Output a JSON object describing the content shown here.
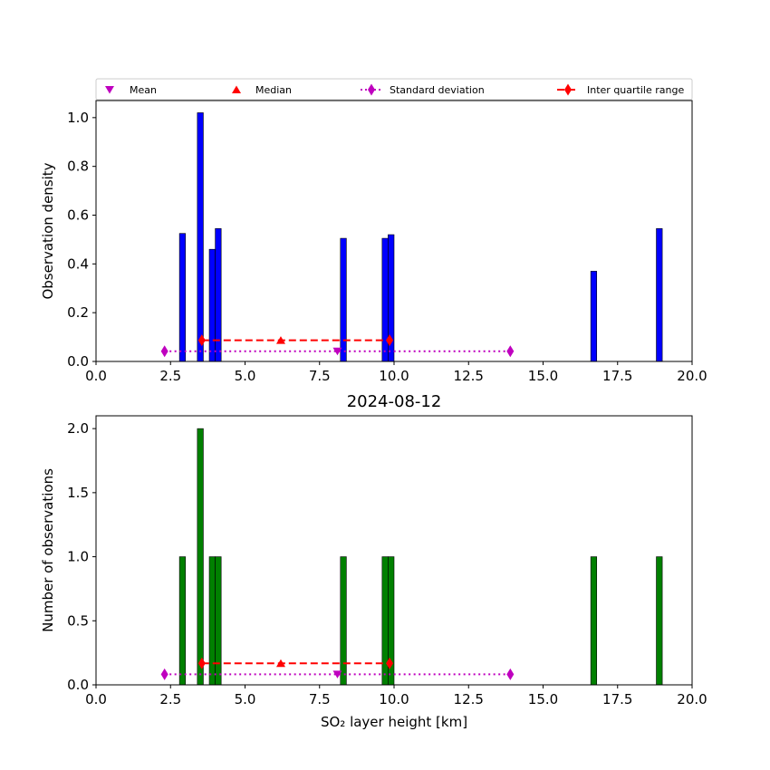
{
  "chart_data": [
    {
      "type": "bar",
      "title": "",
      "xlabel": "",
      "ylabel": "Observation density",
      "xlim": [
        0,
        20
      ],
      "ylim": [
        0,
        1.07
      ],
      "xticks": [
        0,
        2.5,
        5,
        7.5,
        10,
        12.5,
        15,
        17.5,
        20
      ],
      "xtick_labels": [
        "0.0",
        "2.5",
        "5.0",
        "7.5",
        "10.0",
        "12.5",
        "15.0",
        "17.5",
        "20.0"
      ],
      "yticks": [
        0,
        0.2,
        0.4,
        0.6,
        0.8,
        1.0
      ],
      "ytick_labels": [
        "0.0",
        "0.2",
        "0.4",
        "0.6",
        "0.8",
        "1.0"
      ],
      "bar_color": "#0000ff",
      "bin_width": 0.2,
      "bars": [
        {
          "x": 2.8,
          "value": 0.525
        },
        {
          "x": 3.4,
          "value": 1.02
        },
        {
          "x": 3.8,
          "value": 0.46
        },
        {
          "x": 4.0,
          "value": 0.545
        },
        {
          "x": 8.2,
          "value": 0.505
        },
        {
          "x": 9.6,
          "value": 0.505
        },
        {
          "x": 9.8,
          "value": 0.52
        },
        {
          "x": 16.6,
          "value": 0.37
        },
        {
          "x": 18.8,
          "value": 0.545
        }
      ],
      "stats": {
        "mean": {
          "x": 8.1,
          "y": 0.042
        },
        "median": {
          "x": 6.2,
          "y": 0.087
        },
        "std": {
          "x_min": 2.3,
          "x_max": 13.9,
          "y": 0.042
        },
        "iqr": {
          "x_min": 3.55,
          "x_max": 9.85,
          "y": 0.087
        }
      }
    },
    {
      "type": "bar",
      "title": "2024-08-12",
      "xlabel": "SO₂ layer height [km]",
      "ylabel": "Number of observations",
      "xlim": [
        0,
        20
      ],
      "ylim": [
        0,
        2.1
      ],
      "xticks": [
        0,
        2.5,
        5,
        7.5,
        10,
        12.5,
        15,
        17.5,
        20
      ],
      "xtick_labels": [
        "0.0",
        "2.5",
        "5.0",
        "7.5",
        "10.0",
        "12.5",
        "15.0",
        "17.5",
        "20.0"
      ],
      "yticks": [
        0,
        0.5,
        1.0,
        1.5,
        2.0
      ],
      "ytick_labels": [
        "0.0",
        "0.5",
        "1.0",
        "1.5",
        "2.0"
      ],
      "bar_color": "#008000",
      "bin_width": 0.2,
      "bars": [
        {
          "x": 2.8,
          "value": 1
        },
        {
          "x": 3.4,
          "value": 2
        },
        {
          "x": 3.8,
          "value": 1
        },
        {
          "x": 4.0,
          "value": 1
        },
        {
          "x": 8.2,
          "value": 1
        },
        {
          "x": 9.6,
          "value": 1
        },
        {
          "x": 9.8,
          "value": 1
        },
        {
          "x": 16.6,
          "value": 1
        },
        {
          "x": 18.8,
          "value": 1
        }
      ],
      "stats": {
        "mean": {
          "x": 8.1,
          "y": 0.082
        },
        "median": {
          "x": 6.2,
          "y": 0.168
        },
        "std": {
          "x_min": 2.3,
          "x_max": 13.9,
          "y": 0.082
        },
        "iqr": {
          "x_min": 3.55,
          "x_max": 9.85,
          "y": 0.168
        }
      }
    }
  ],
  "legend": {
    "placement": "top",
    "entries": [
      {
        "label": "Mean",
        "marker": "triangle-down",
        "color": "#bf00bf"
      },
      {
        "label": "Median",
        "marker": "triangle-up",
        "color": "#ff0000"
      },
      {
        "label": "Standard deviation",
        "marker": "diamond",
        "line": "dotted",
        "color": "#bf00bf"
      },
      {
        "label": "Inter quartile range",
        "marker": "diamond",
        "line": "dashed",
        "color": "#ff0000"
      }
    ]
  },
  "colors": {
    "mean": "#bf00bf",
    "median": "#ff0000",
    "std": "#bf00bf",
    "iqr": "#ff0000"
  }
}
